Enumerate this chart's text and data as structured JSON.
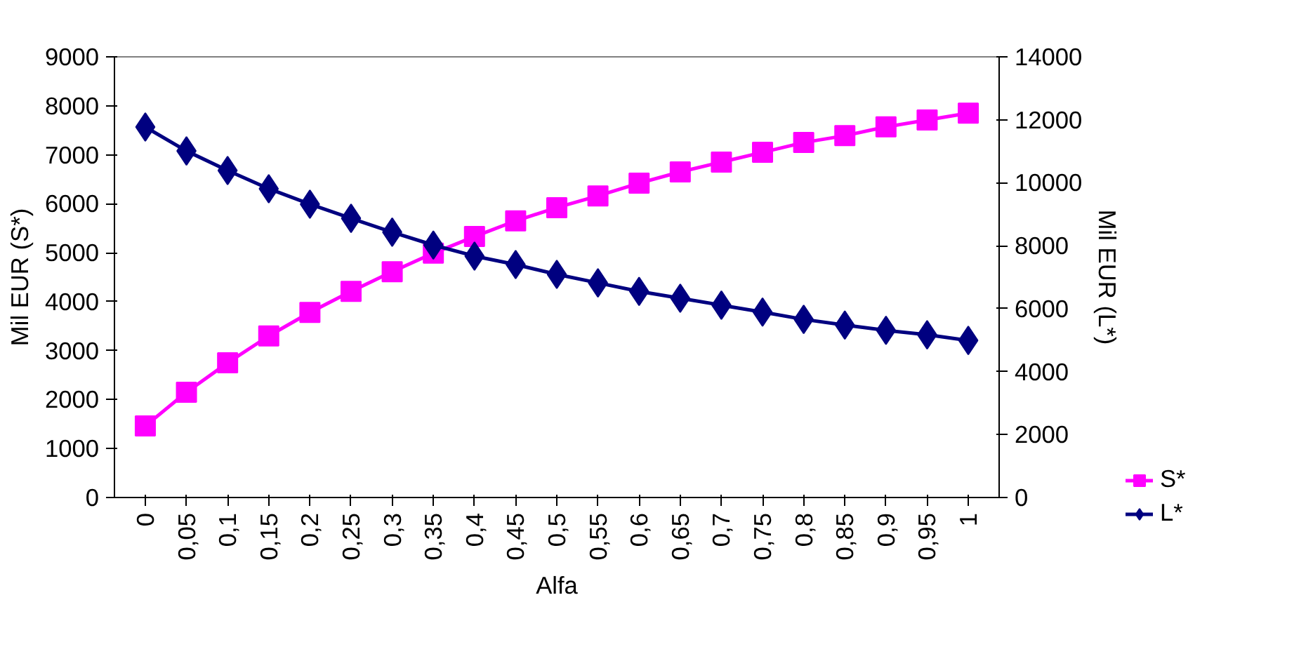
{
  "chart_data": {
    "type": "line",
    "xlabel": "Alfa",
    "ylabel": "Mil EUR (S*)",
    "y2label": "Mil EUR (L*)",
    "categories": [
      "0",
      "0,05",
      "0,1",
      "0,15",
      "0,2",
      "0,25",
      "0,3",
      "0,35",
      "0,4",
      "0,45",
      "0,5",
      "0,55",
      "0,6",
      "0,65",
      "0,7",
      "0,75",
      "0,8",
      "0,85",
      "0,9",
      "0,95",
      "1"
    ],
    "series": [
      {
        "name": "S*",
        "color": "#ff00ff",
        "marker": "square",
        "values": [
          1460,
          2150,
          2750,
          3300,
          3780,
          4210,
          4610,
          4990,
          5330,
          5650,
          5920,
          6160,
          6420,
          6650,
          6850,
          7050,
          7250,
          7390,
          7570,
          7710,
          7850
        ]
      },
      {
        "name": "L*",
        "color": "#000080",
        "marker": "diamond",
        "axis": "y2",
        "values": [
          11770,
          11010,
          10390,
          9810,
          9320,
          8870,
          8430,
          8020,
          7670,
          7400,
          7090,
          6820,
          6550,
          6330,
          6110,
          5890,
          5660,
          5480,
          5310,
          5170,
          4990
        ]
      }
    ],
    "ylim": [
      0,
      9000
    ],
    "yticks": [
      0,
      1000,
      2000,
      3000,
      4000,
      5000,
      6000,
      7000,
      8000,
      9000
    ],
    "y2lim": [
      0,
      14000
    ],
    "y2ticks": [
      0,
      2000,
      4000,
      6000,
      8000,
      10000,
      12000,
      14000
    ],
    "grid": false,
    "legend": "bottom right"
  }
}
